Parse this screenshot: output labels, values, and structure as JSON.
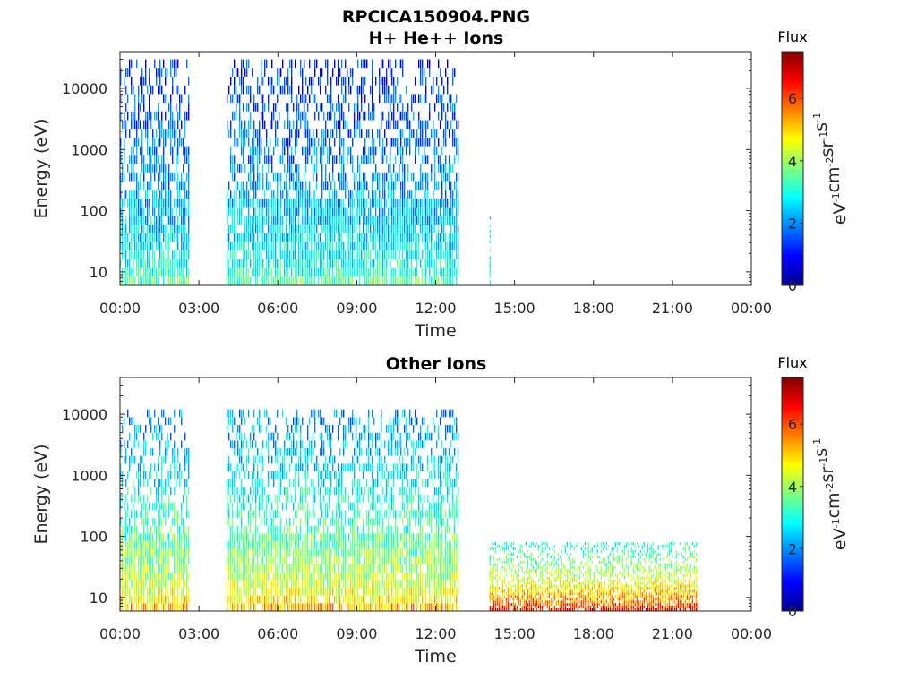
{
  "figure": {
    "title": "RPCICA150904.PNG"
  },
  "chart_data": [
    {
      "type": "heatmap",
      "title": "H+ He++ Ions",
      "xlabel": "Time",
      "ylabel": "Energy (eV)",
      "yscale": "log",
      "ylim": [
        6,
        40000
      ],
      "xlim_hours": [
        0,
        24
      ],
      "x_tick_labels": [
        "00:00",
        "03:00",
        "06:00",
        "09:00",
        "12:00",
        "15:00",
        "18:00",
        "21:00",
        "00:00"
      ],
      "y_tick_labels": [
        "10",
        "100",
        "1000",
        "10000"
      ],
      "colorbar": {
        "title": "Flux",
        "label": "eV-1cm-2sr-1s-1",
        "range": [
          0,
          7.5
        ],
        "tick_labels": [
          "0",
          "2",
          "4",
          "6"
        ],
        "colormap": "jet"
      },
      "data_segments": [
        {
          "start_hour": 0.0,
          "end_hour": 2.6,
          "energy_max": 30000,
          "low_energy_flux": 3.5,
          "high_energy_flux": 1.2
        },
        {
          "start_hour": 4.05,
          "end_hour": 12.9,
          "energy_max": 30000,
          "low_energy_flux": 3.5,
          "high_energy_flux": 1.2
        },
        {
          "start_hour": 14.05,
          "end_hour": 14.1,
          "energy_max": 80,
          "low_energy_flux": 3.5,
          "high_energy_flux": 3.0
        }
      ],
      "grid": false
    },
    {
      "type": "heatmap",
      "title": "Other Ions",
      "xlabel": "Time",
      "ylabel": "Energy (eV)",
      "yscale": "log",
      "ylim": [
        6,
        40000
      ],
      "xlim_hours": [
        0,
        24
      ],
      "x_tick_labels": [
        "00:00",
        "03:00",
        "06:00",
        "09:00",
        "12:00",
        "15:00",
        "18:00",
        "21:00",
        "00:00"
      ],
      "y_tick_labels": [
        "10",
        "100",
        "1000",
        "10000"
      ],
      "colorbar": {
        "title": "Flux",
        "label": "eV-1cm-2sr-1s-1",
        "range": [
          0,
          7.5
        ],
        "tick_labels": [
          "0",
          "2",
          "4",
          "6"
        ],
        "colormap": "jet"
      },
      "data_segments": [
        {
          "start_hour": 0.0,
          "end_hour": 2.6,
          "energy_max": 12000,
          "low_energy_flux": 5.2,
          "high_energy_flux": 2.0
        },
        {
          "start_hour": 4.05,
          "end_hour": 12.9,
          "energy_max": 12000,
          "low_energy_flux": 5.2,
          "high_energy_flux": 2.0
        },
        {
          "start_hour": 14.05,
          "end_hour": 22.0,
          "energy_max": 80,
          "low_energy_flux": 6.6,
          "high_energy_flux": 3.0
        }
      ],
      "grid": false
    }
  ]
}
